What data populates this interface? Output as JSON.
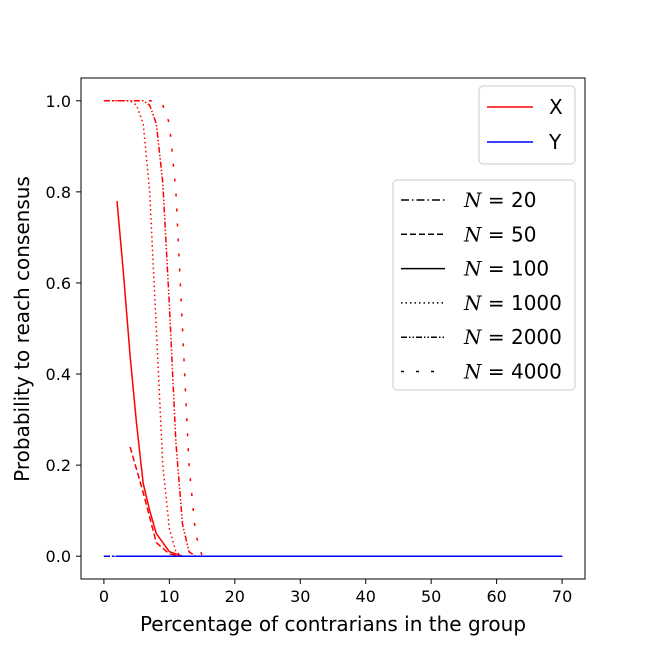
{
  "chart_data": {
    "type": "line",
    "title": "",
    "xlabel": "Percentage of contrarians in the group",
    "ylabel": "Probability to reach consensus",
    "xlim": [
      -3.5,
      73.5
    ],
    "ylim": [
      -0.05,
      1.05
    ],
    "xticks": [
      0,
      10,
      20,
      30,
      40,
      50,
      60,
      70
    ],
    "xtick_labels": [
      "0",
      "10",
      "20",
      "30",
      "40",
      "50",
      "60",
      "70"
    ],
    "yticks": [
      0.0,
      0.2,
      0.4,
      0.6,
      0.8,
      1.0
    ],
    "ytick_labels": [
      "0.0",
      "0.2",
      "0.4",
      "0.6",
      "0.8",
      "1.0"
    ],
    "grid": false,
    "color_legend": {
      "placement": "top-right",
      "entries": [
        {
          "label": "X",
          "color": "#ff0000"
        },
        {
          "label": "Y",
          "color": "#0000ff"
        }
      ]
    },
    "style_legend": {
      "placement": "center-right",
      "entries": [
        {
          "var": "N",
          "eq": " = ",
          "value": "20",
          "dash": "dashdot"
        },
        {
          "var": "N",
          "eq": " = ",
          "value": "50",
          "dash": "dashed"
        },
        {
          "var": "N",
          "eq": " = ",
          "value": "100",
          "dash": "solid"
        },
        {
          "var": "N",
          "eq": " = ",
          "value": "1000",
          "dash": "dotted"
        },
        {
          "var": "N",
          "eq": " = ",
          "value": "2000",
          "dash": "dashdotdot"
        },
        {
          "var": "N",
          "eq": " = ",
          "value": "4000",
          "dash": "loose"
        }
      ]
    },
    "series": [
      {
        "variable": "X",
        "n": "20",
        "color": "#ff0000",
        "dash": "dashdot",
        "x": [
          5,
          10,
          15,
          20,
          30,
          40,
          50,
          60,
          70
        ],
        "y": [
          0.0,
          0.0,
          0.0,
          0.0,
          0.0,
          0.0,
          0.0,
          0.0,
          0.0
        ]
      },
      {
        "variable": "X",
        "n": "50",
        "color": "#ff0000",
        "dash": "dashed",
        "x": [
          4,
          6,
          8,
          10,
          12,
          14,
          20,
          30,
          40,
          50,
          60,
          70
        ],
        "y": [
          0.24,
          0.14,
          0.03,
          0.005,
          0.0,
          0.0,
          0.0,
          0.0,
          0.0,
          0.0,
          0.0,
          0.0
        ]
      },
      {
        "variable": "X",
        "n": "100",
        "color": "#ff0000",
        "dash": "solid",
        "x": [
          2,
          3,
          4,
          5,
          6,
          7,
          8,
          9,
          10,
          11,
          12,
          15,
          20,
          30,
          40,
          50,
          60,
          70
        ],
        "y": [
          0.78,
          0.62,
          0.44,
          0.29,
          0.16,
          0.1,
          0.05,
          0.03,
          0.01,
          0.005,
          0.0,
          0.0,
          0.0,
          0.0,
          0.0,
          0.0,
          0.0,
          0.0
        ]
      },
      {
        "variable": "X",
        "n": "1000",
        "color": "#ff0000",
        "dash": "dotted",
        "x": [
          0,
          2,
          4,
          5,
          6,
          7,
          8,
          9,
          10,
          11,
          12,
          13,
          15,
          20,
          30,
          40,
          50,
          60,
          70
        ],
        "y": [
          1.0,
          1.0,
          1.0,
          0.99,
          0.95,
          0.8,
          0.5,
          0.2,
          0.06,
          0.01,
          0.0,
          0.0,
          0.0,
          0.0,
          0.0,
          0.0,
          0.0,
          0.0,
          0.0
        ]
      },
      {
        "variable": "X",
        "n": "2000",
        "color": "#ff0000",
        "dash": "dashdotdot",
        "x": [
          0,
          2,
          4,
          6,
          7,
          8,
          9,
          10,
          11,
          12,
          13,
          14,
          15,
          20,
          30,
          40,
          50,
          60,
          70
        ],
        "y": [
          1.0,
          1.0,
          1.0,
          1.0,
          0.99,
          0.95,
          0.82,
          0.55,
          0.25,
          0.07,
          0.01,
          0.0,
          0.0,
          0.0,
          0.0,
          0.0,
          0.0,
          0.0,
          0.0
        ]
      },
      {
        "variable": "X",
        "n": "4000",
        "color": "#ff0000",
        "dash": "loose",
        "x": [
          0,
          2,
          4,
          6,
          8,
          9,
          10,
          11,
          12,
          13,
          14,
          15,
          20,
          30,
          40,
          50,
          60,
          70
        ],
        "y": [
          1.0,
          1.0,
          1.0,
          1.0,
          1.0,
          0.99,
          0.95,
          0.8,
          0.5,
          0.2,
          0.05,
          0.0,
          0.0,
          0.0,
          0.0,
          0.0,
          0.0,
          0.0
        ]
      },
      {
        "variable": "Y",
        "n": "20",
        "color": "#0000ff",
        "dash": "dashdot",
        "x": [
          5,
          10,
          20,
          30,
          40,
          50,
          60,
          70
        ],
        "y": [
          0.0,
          0.0,
          0.0,
          0.0,
          0.0,
          0.0,
          0.0,
          0.0
        ]
      },
      {
        "variable": "Y",
        "n": "50",
        "color": "#0000ff",
        "dash": "dashed",
        "x": [
          4,
          10,
          20,
          30,
          40,
          50,
          60,
          70
        ],
        "y": [
          0.0,
          0.0,
          0.0,
          0.0,
          0.0,
          0.0,
          0.0,
          0.0
        ]
      },
      {
        "variable": "Y",
        "n": "100",
        "color": "#0000ff",
        "dash": "solid",
        "x": [
          2,
          10,
          20,
          30,
          40,
          50,
          60,
          70
        ],
        "y": [
          0.0,
          0.0,
          0.0,
          0.0,
          0.0,
          0.0,
          0.0,
          0.0
        ]
      },
      {
        "variable": "Y",
        "n": "1000",
        "color": "#0000ff",
        "dash": "dotted",
        "x": [
          0,
          10,
          20,
          30,
          40,
          50,
          60,
          70
        ],
        "y": [
          0.0,
          0.0,
          0.0,
          0.0,
          0.0,
          0.0,
          0.0,
          0.0
        ]
      },
      {
        "variable": "Y",
        "n": "2000",
        "color": "#0000ff",
        "dash": "dashdotdot",
        "x": [
          0,
          10,
          20,
          30,
          40,
          50,
          60,
          70
        ],
        "y": [
          0.0,
          0.0,
          0.0,
          0.0,
          0.0,
          0.0,
          0.0,
          0.0
        ]
      },
      {
        "variable": "Y",
        "n": "4000",
        "color": "#0000ff",
        "dash": "loose",
        "x": [
          0,
          10,
          20,
          30,
          40,
          50,
          60,
          70
        ],
        "y": [
          0.0,
          0.0,
          0.0,
          0.0,
          0.0,
          0.0,
          0.0,
          0.0
        ]
      }
    ]
  }
}
